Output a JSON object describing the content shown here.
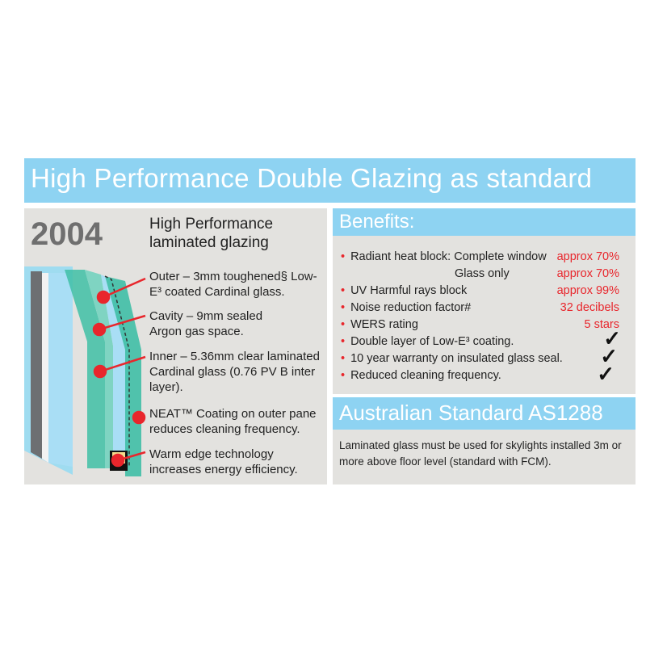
{
  "title": "High Performance Double Glazing as standard",
  "left": {
    "year": "2004",
    "subtitle_line1": "High Performance",
    "subtitle_line2": "laminated glazing",
    "callouts": [
      {
        "text": "Outer – 3mm toughened§ Low-E³ coated Cardinal glass."
      },
      {
        "text": "Cavity – 9mm sealed Argon gas space."
      },
      {
        "text": "Inner – 5.36mm clear laminated Cardinal glass (0.76 PV B inter layer)."
      },
      {
        "text": "NEAT™ Coating on outer pane reduces cleaning frequency."
      },
      {
        "text": "Warm edge technology increases energy efficiency."
      }
    ]
  },
  "benefits": {
    "heading": "Benefits:",
    "rows": [
      {
        "label": "Radiant heat block: Complete window",
        "value": "approx 70%"
      },
      {
        "label": "Glass only",
        "value": "approx 70%"
      },
      {
        "label": "UV Harmful rays block",
        "value": "approx 99%"
      },
      {
        "label": "Noise reduction factor#",
        "value": "32 decibels"
      },
      {
        "label": "WERS rating",
        "value": "5 stars"
      },
      {
        "label": "Double layer of Low-E³ coating.",
        "value": "✓"
      },
      {
        "label": "10 year warranty on insulated glass seal.",
        "value": "✓"
      },
      {
        "label": "Reduced cleaning frequency.",
        "value": "✓"
      }
    ],
    "bullet": "•"
  },
  "standard": {
    "heading": "Australian Standard AS1288",
    "text": "Laminated glass must be used for skylights installed 3m or more above floor level (standard with FCM)."
  },
  "colors": {
    "header": "#8ed3f2",
    "panel": "#e3e2df",
    "accent": "#e8262c",
    "glass": "#3fbfa6"
  }
}
